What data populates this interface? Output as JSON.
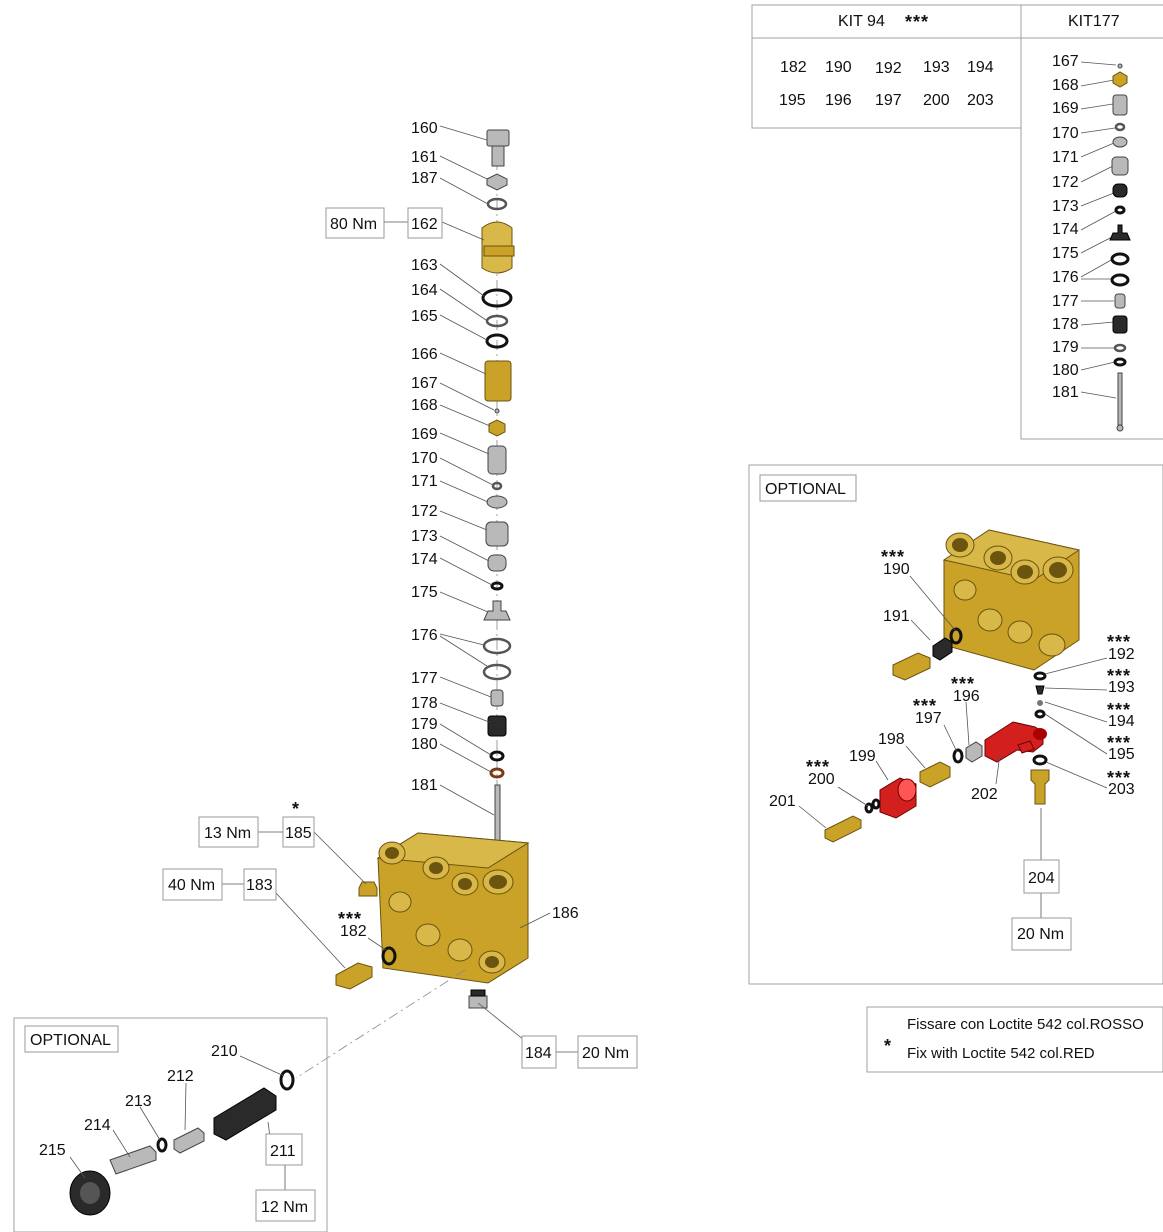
{
  "kit94": {
    "title": "KIT 94",
    "stars": "***",
    "row1": [
      "182",
      "190",
      "192",
      "193",
      "194"
    ],
    "row2": [
      "195",
      "196",
      "197",
      "200",
      "203"
    ]
  },
  "kit177": {
    "title": "KIT177",
    "items": [
      "167",
      "168",
      "169",
      "170",
      "171",
      "172",
      "173",
      "174",
      "175",
      "176",
      "177",
      "178",
      "179",
      "180",
      "181"
    ]
  },
  "main_labels": {
    "l160": "160",
    "l161": "161",
    "l187": "187",
    "l162": "162",
    "l163": "163",
    "l164": "164",
    "l165": "165",
    "l166": "166",
    "l167": "167",
    "l168": "168",
    "l169": "169",
    "l170": "170",
    "l171": "171",
    "l172": "172",
    "l173": "173",
    "l174": "174",
    "l175": "175",
    "l176": "176",
    "l177": "177",
    "l178": "178",
    "l179": "179",
    "l180": "180",
    "l181": "181",
    "l185": "185",
    "l183": "183",
    "l182": "182",
    "l186": "186",
    "l184": "184"
  },
  "torques": {
    "t162": "80 Nm",
    "t185": "13 Nm",
    "t183": "40 Nm",
    "t184": "20 Nm",
    "t211": "12 Nm",
    "t204": "20 Nm"
  },
  "optional_bottom": {
    "title": "OPTIONAL",
    "l210": "210",
    "l211": "211",
    "l212": "212",
    "l213": "213",
    "l214": "214",
    "l215": "215"
  },
  "optional_right": {
    "title": "OPTIONAL",
    "l190": "190",
    "l191": "191",
    "l192": "192",
    "l193": "193",
    "l194": "194",
    "l195": "195",
    "l196": "196",
    "l197": "197",
    "l198": "198",
    "l199": "199",
    "l200": "200",
    "l201": "201",
    "l202": "202",
    "l203": "203",
    "l204": "204"
  },
  "stars": {
    "triple": "***",
    "single": "*"
  },
  "note": {
    "symbol": "*",
    "line1": "Fissare con Loctite 542 col.ROSSO",
    "line2": "Fix with Loctite 542 col.RED"
  },
  "colors": {
    "brass": "#c9a227",
    "red": "#d41f1f",
    "black": "#2a2a2a",
    "grey": "#b9b9b9"
  }
}
